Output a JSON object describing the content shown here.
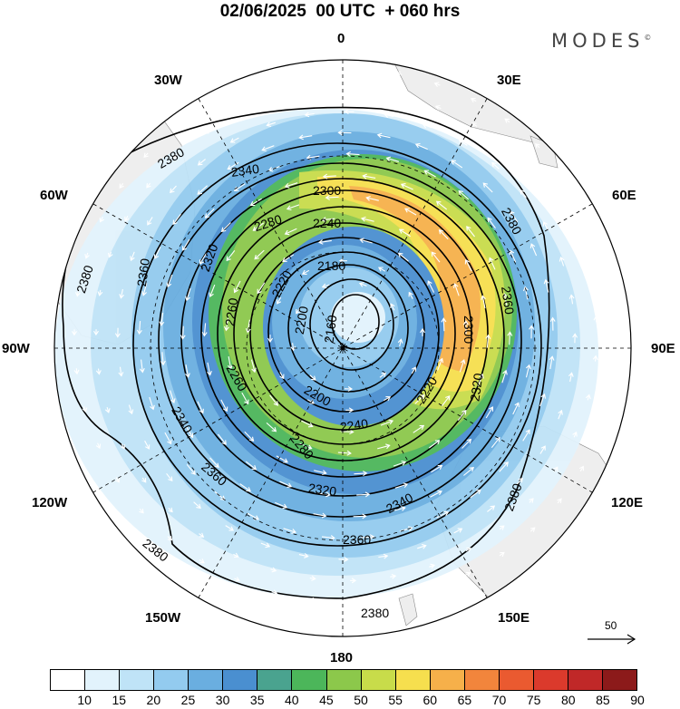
{
  "title": "02/06/2025  00 UTC  + 060 hrs",
  "brand": "MODES",
  "brand_mark": "©",
  "longitude_labels": {
    "deg0": "0",
    "deg30E": "30E",
    "deg60E": "60E",
    "deg90E": "90E",
    "deg120E": "120E",
    "deg150E": "150E",
    "deg180": "180",
    "deg150W": "150W",
    "deg120W": "120W",
    "deg90W": "90W",
    "deg60W": "60W",
    "deg30W": "30W"
  },
  "contour_labels": [
    "2380",
    "2380",
    "2380",
    "2380",
    "2380",
    "2380",
    "2360",
    "2360",
    "2360",
    "2360",
    "2340",
    "2340",
    "2340",
    "2320",
    "2320",
    "2320",
    "2300",
    "2300",
    "2280",
    "2280",
    "2260",
    "2260",
    "2240",
    "2240",
    "2220",
    "2220",
    "2200",
    "2200",
    "2180",
    "2160"
  ],
  "reference_vector": {
    "label": "50"
  },
  "colorbar": {
    "ticks": [
      "10",
      "15",
      "20",
      "25",
      "30",
      "35",
      "40",
      "45",
      "50",
      "55",
      "60",
      "65",
      "70",
      "75",
      "80",
      "85",
      "90"
    ],
    "colors": [
      "#ffffff",
      "#e2f3fc",
      "#bfe3f7",
      "#93cbef",
      "#6aaee0",
      "#4a8fd0",
      "#4aa38f",
      "#4cb65a",
      "#8cc84b",
      "#c8dc4a",
      "#f6df4e",
      "#f6b04a",
      "#f2853c",
      "#ea5a30",
      "#db3a2c",
      "#c02828",
      "#8c1a1a"
    ]
  },
  "colors": {
    "land": "#f0f0f0",
    "contour": "#000000",
    "vector": "#ffffff"
  }
}
